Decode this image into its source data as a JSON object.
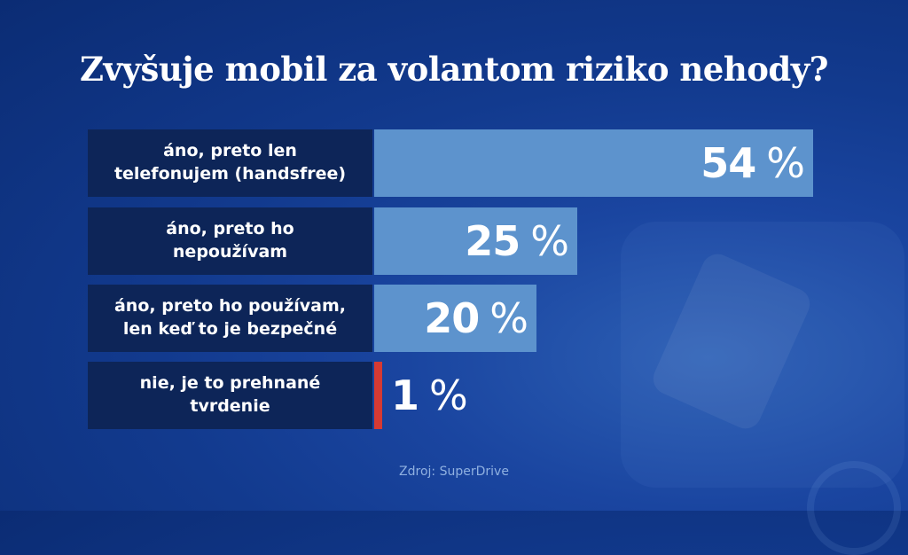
{
  "title": "Zvyšuje mobil za volantom riziko nehody?",
  "source": "Zdroj: SuperDrive",
  "chart_data": {
    "type": "bar",
    "orientation": "horizontal",
    "title": "Zvyšuje mobil za volantom riziko nehody?",
    "categories": [
      "áno, preto len telefonujem (handsfree)",
      "áno, preto ho nepoužívam",
      "áno, preto ho používam, len keď to je bezpečné",
      "nie, je to prehnané tvrdenie"
    ],
    "values": [
      54,
      25,
      20,
      1
    ],
    "value_labels": [
      "54",
      "25",
      "20",
      "1"
    ],
    "unit": "%",
    "colors": {
      "bar": "#5d93cd",
      "bar_small": "#d63a33",
      "label_box": "#0d2558"
    },
    "grid": false,
    "legend": "none"
  }
}
